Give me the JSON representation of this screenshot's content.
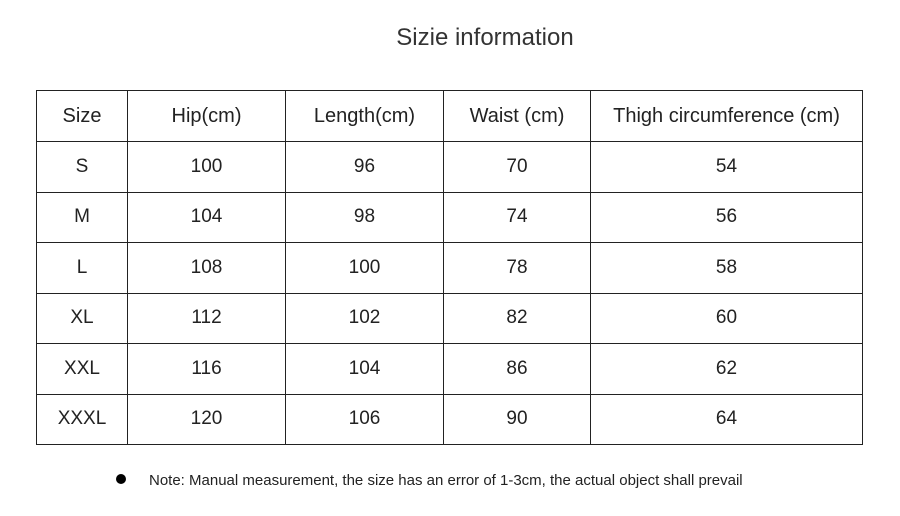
{
  "header": {
    "title": "Sizie information"
  },
  "table": {
    "columns": [
      "Size",
      "Hip(cm)",
      "Length(cm)",
      "Waist (cm)",
      "Thigh circumference (cm)"
    ],
    "rows": [
      [
        "S",
        100,
        96,
        70,
        54
      ],
      [
        "M",
        104,
        98,
        74,
        56
      ],
      [
        "L",
        108,
        100,
        78,
        58
      ],
      [
        "XL",
        112,
        102,
        82,
        60
      ],
      [
        "XXL",
        116,
        104,
        86,
        62
      ],
      [
        "XXXL",
        120,
        106,
        90,
        64
      ]
    ]
  },
  "note": "Note: Manual measurement, the size has an error of 1-3cm, the actual object shall prevail"
}
